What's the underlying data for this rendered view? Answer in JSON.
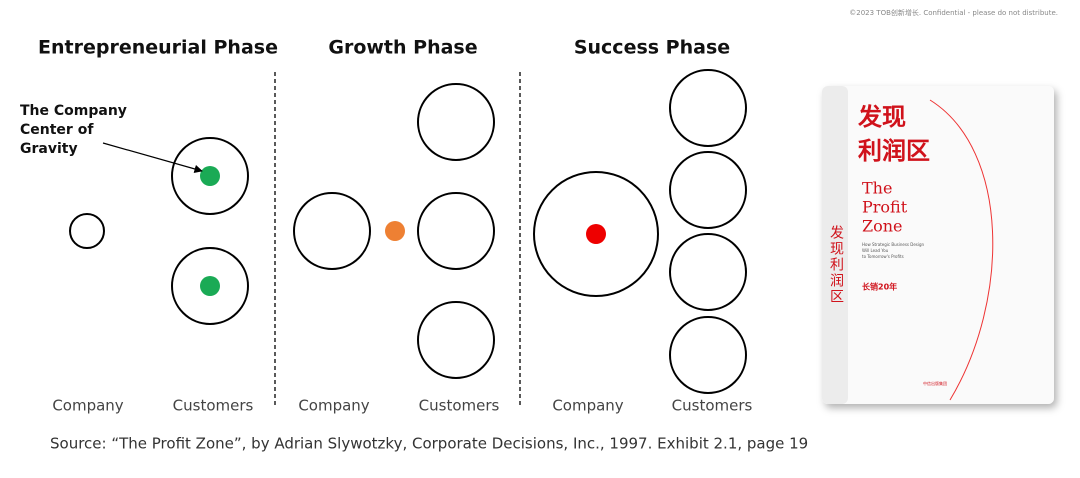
{
  "copyright": "©2023 TOB创新增长. Confidential - please do not distribute.",
  "phases": [
    {
      "title": "Entrepreneurial Phase",
      "company_label": "Company",
      "customers_label": "Customers"
    },
    {
      "title": "Growth Phase",
      "company_label": "Company",
      "customers_label": "Customers"
    },
    {
      "title": "Success Phase",
      "company_label": "Company",
      "customers_label": "Customers"
    }
  ],
  "annotation": [
    "The Company",
    "Center of",
    "Gravity"
  ],
  "source": "Source: “The Profit Zone”, by Adrian Slywotzky, Corporate Decisions, Inc., 1997.  Exhibit 2.1, page 19",
  "book": {
    "title_lines": [
      "发现",
      "利润区"
    ],
    "spine_title": "发现利润区",
    "english_lines": [
      "The",
      "Profit",
      "Zone"
    ],
    "subtitle_lines": [
      "How Strategic Business Design",
      "Will Lead You",
      "to Tomorrow's Profits"
    ],
    "badge": "长销20年",
    "publisher": "中信出版集团"
  }
}
